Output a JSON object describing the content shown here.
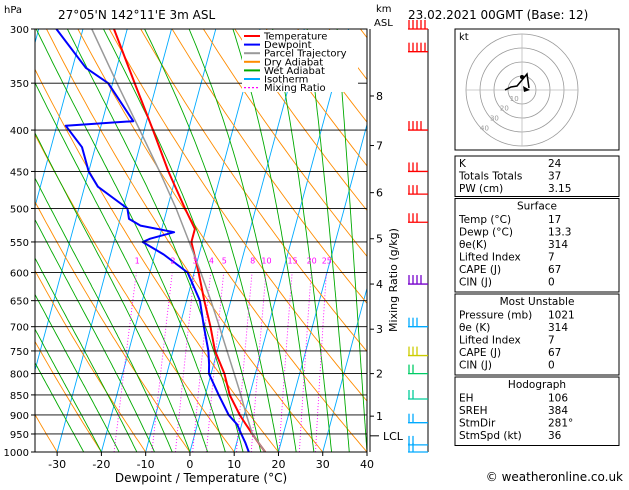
{
  "header": {
    "pressure_unit": "hPa",
    "location": "27°05'N  142°11'E  3m  ASL",
    "height_unit_line1": "km",
    "height_unit_line2": "ASL",
    "datetime": "23.02.2021  00GMT  (Base: 12)"
  },
  "legend": {
    "items": [
      {
        "label": "Temperature",
        "color": "#ff0000",
        "style": "solid"
      },
      {
        "label": "Dewpoint",
        "color": "#0000ff",
        "style": "solid"
      },
      {
        "label": "Parcel Trajectory",
        "color": "#999999",
        "style": "solid"
      },
      {
        "label": "Dry Adiabat",
        "color": "#ff8c00",
        "style": "solid"
      },
      {
        "label": "Wet Adiabat",
        "color": "#00aa00",
        "style": "solid"
      },
      {
        "label": "Isotherm",
        "color": "#00aaff",
        "style": "solid"
      },
      {
        "label": "Mixing Ratio",
        "color": "#ff00ff",
        "style": "dotted"
      }
    ]
  },
  "chart_data": {
    "type": "skew-t",
    "xlabel": "Dewpoint / Temperature (°C)",
    "ylabel": "hPa",
    "right_axis_label": "km ASL",
    "mixing_ratio_axis_label": "Mixing Ratio (g/kg)",
    "pressure_ticks": [
      300,
      350,
      400,
      450,
      500,
      550,
      600,
      650,
      700,
      750,
      800,
      850,
      900,
      950,
      1000
    ],
    "temperature_ticks": [
      -30,
      -20,
      -10,
      0,
      10,
      20,
      30,
      40
    ],
    "xlim": [
      -35,
      40
    ],
    "ylim_hpa": [
      1000,
      300
    ],
    "height_ticks_km": [
      {
        "label": "1",
        "p": 903
      },
      {
        "label": "2",
        "p": 800
      },
      {
        "label": "3",
        "p": 705
      },
      {
        "label": "4",
        "p": 620
      },
      {
        "label": "5",
        "p": 545
      },
      {
        "label": "6",
        "p": 478
      },
      {
        "label": "7",
        "p": 418
      },
      {
        "label": "8",
        "p": 363
      }
    ],
    "lcl": {
      "label": "LCL",
      "p": 955
    },
    "mixing_ratio_labels": [
      "1",
      "2",
      "3",
      "4",
      "5",
      "8",
      "10",
      "15",
      "20",
      "25"
    ],
    "mixing_ratios_gkg": [
      1,
      2,
      3,
      4,
      5,
      8,
      10,
      15,
      20,
      25
    ],
    "mixing_ratio_label_p": 590,
    "series": [
      {
        "name": "Temperature",
        "color": "#ff0000",
        "points": [
          {
            "p": 1000,
            "t": 17
          },
          {
            "p": 975,
            "t": 15
          },
          {
            "p": 950,
            "t": 13
          },
          {
            "p": 925,
            "t": 11
          },
          {
            "p": 900,
            "t": 9
          },
          {
            "p": 850,
            "t": 5.5
          },
          {
            "p": 800,
            "t": 3
          },
          {
            "p": 750,
            "t": -0.5
          },
          {
            "p": 700,
            "t": -3
          },
          {
            "p": 650,
            "t": -6
          },
          {
            "p": 600,
            "t": -9
          },
          {
            "p": 550,
            "t": -12.5
          },
          {
            "p": 530,
            "t": -12.5
          },
          {
            "p": 500,
            "t": -16
          },
          {
            "p": 450,
            "t": -22
          },
          {
            "p": 400,
            "t": -28
          },
          {
            "p": 350,
            "t": -35
          },
          {
            "p": 300,
            "t": -43
          }
        ]
      },
      {
        "name": "Dewpoint",
        "color": "#0000ff",
        "points": [
          {
            "p": 1000,
            "t": 13.3
          },
          {
            "p": 975,
            "t": 12
          },
          {
            "p": 950,
            "t": 10.5
          },
          {
            "p": 925,
            "t": 9
          },
          {
            "p": 900,
            "t": 6.5
          },
          {
            "p": 850,
            "t": 3
          },
          {
            "p": 800,
            "t": -0.5
          },
          {
            "p": 780,
            "t": -1
          },
          {
            "p": 750,
            "t": -2
          },
          {
            "p": 700,
            "t": -4.5
          },
          {
            "p": 650,
            "t": -7
          },
          {
            "p": 600,
            "t": -11.5
          },
          {
            "p": 570,
            "t": -18
          },
          {
            "p": 550,
            "t": -23.5
          },
          {
            "p": 545,
            "t": -22
          },
          {
            "p": 535,
            "t": -17
          },
          {
            "p": 525,
            "t": -25
          },
          {
            "p": 515,
            "t": -28
          },
          {
            "p": 500,
            "t": -29
          },
          {
            "p": 470,
            "t": -37
          },
          {
            "p": 450,
            "t": -40
          },
          {
            "p": 420,
            "t": -43
          },
          {
            "p": 395,
            "t": -48
          },
          {
            "p": 390,
            "t": -33
          },
          {
            "p": 350,
            "t": -41
          },
          {
            "p": 335,
            "t": -47
          },
          {
            "p": 300,
            "t": -56
          }
        ]
      },
      {
        "name": "Parcel Trajectory",
        "color": "#999999",
        "points": [
          {
            "p": 1000,
            "t": 17
          },
          {
            "p": 950,
            "t": 13
          },
          {
            "p": 900,
            "t": 10.5
          },
          {
            "p": 850,
            "t": 8
          },
          {
            "p": 800,
            "t": 5.2
          },
          {
            "p": 750,
            "t": 2.2
          },
          {
            "p": 700,
            "t": -1
          },
          {
            "p": 650,
            "t": -4.5
          },
          {
            "p": 600,
            "t": -8.5
          },
          {
            "p": 550,
            "t": -13
          },
          {
            "p": 500,
            "t": -18
          },
          {
            "p": 450,
            "t": -24
          },
          {
            "p": 400,
            "t": -31
          },
          {
            "p": 350,
            "t": -39
          },
          {
            "p": 300,
            "t": -48
          }
        ]
      }
    ]
  },
  "hodograph": {
    "label": "kt",
    "ring_labels": [
      "10",
      "20",
      "30",
      "40"
    ]
  },
  "indices": {
    "rows": [
      {
        "label": "K",
        "value": "24"
      },
      {
        "label": "Totals Totals",
        "value": "37"
      },
      {
        "label": "PW (cm)",
        "value": "3.15"
      }
    ]
  },
  "surface": {
    "title": "Surface",
    "rows": [
      {
        "label": "Temp (°C)",
        "value": "17"
      },
      {
        "label": "Dewp (°C)",
        "value": "13.3"
      },
      {
        "label": "θe(K)",
        "value": "314"
      },
      {
        "label": "Lifted Index",
        "value": "7"
      },
      {
        "label": "CAPE (J)",
        "value": "67"
      },
      {
        "label": "CIN (J)",
        "value": "0"
      }
    ]
  },
  "most_unstable": {
    "title": "Most Unstable",
    "rows": [
      {
        "label": "Pressure (mb)",
        "value": "1021"
      },
      {
        "label": "θe (K)",
        "value": "314"
      },
      {
        "label": "Lifted Index",
        "value": "7"
      },
      {
        "label": "CAPE (J)",
        "value": "67"
      },
      {
        "label": "CIN (J)",
        "value": "0"
      }
    ]
  },
  "hodograph_table": {
    "title": "Hodograph",
    "rows": [
      {
        "label": "EH",
        "value": "106"
      },
      {
        "label": "SREH",
        "value": "384"
      },
      {
        "label": "StmDir",
        "value": "281°"
      },
      {
        "label": "StmSpd (kt)",
        "value": "36"
      }
    ]
  },
  "footer": {
    "copyright": "© weatheronline.co.uk"
  }
}
